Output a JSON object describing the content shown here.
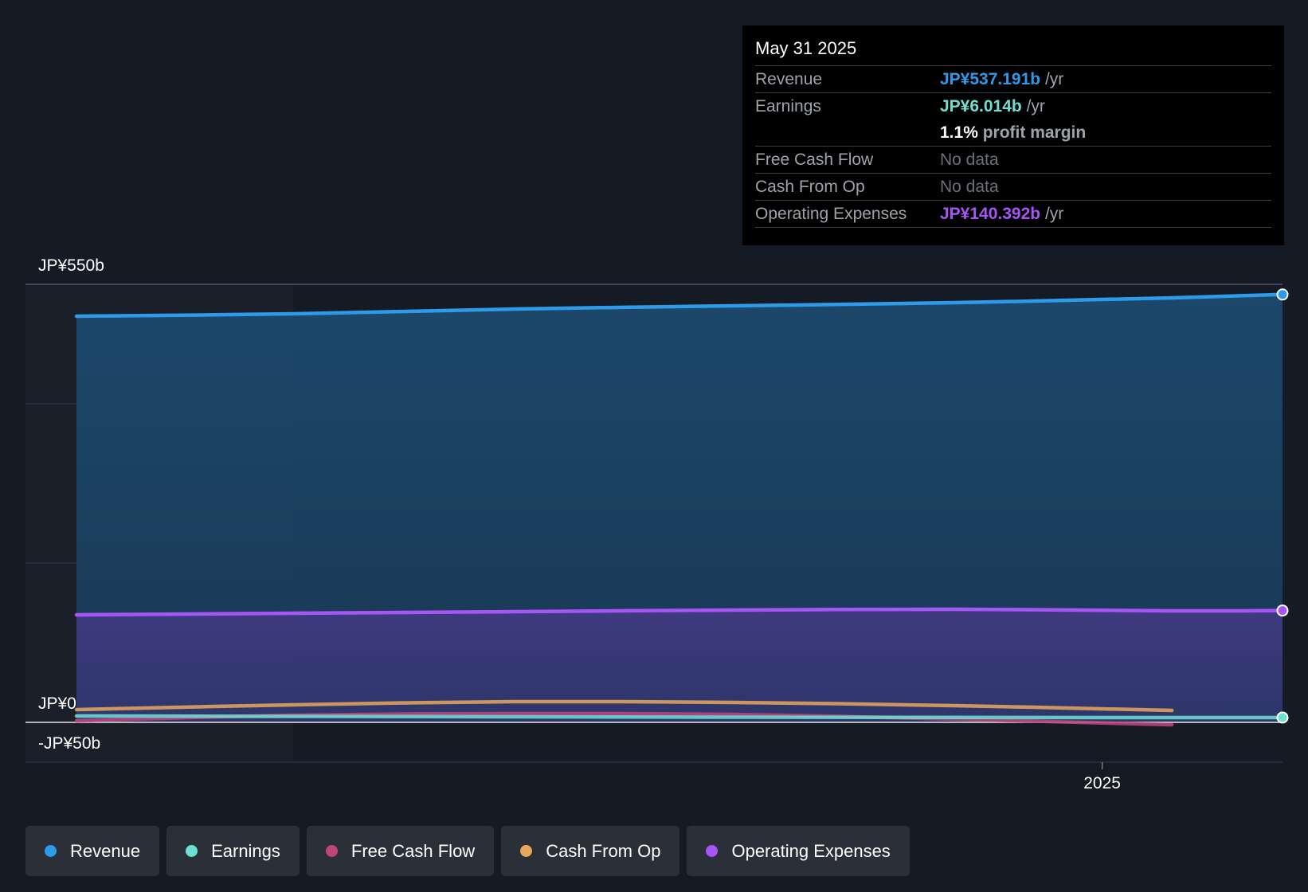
{
  "chart_data": {
    "type": "area",
    "title": "",
    "xlabel": "",
    "ylabel": "",
    "ylim": [
      -50,
      550
    ],
    "y_tick_labels": [
      "JP¥550b",
      "JP¥0",
      "-JP¥50b"
    ],
    "y_ticks": [
      550,
      0,
      -50
    ],
    "x_tick_labels": [
      "2025"
    ],
    "x_ticks": [
      "2025-01-01"
    ],
    "x_range": [
      "2022-09-01",
      "2025-05-31"
    ],
    "shaded_until": "2023-02-28",
    "grid": true,
    "series": [
      {
        "name": "Revenue",
        "color": "#2d9bea",
        "fill": true,
        "x": [
          "2022-09-01",
          "2023-02-28",
          "2023-08-31",
          "2024-02-29",
          "2024-08-31",
          "2025-02-28",
          "2025-05-31"
        ],
        "values": [
          510,
          513,
          519,
          523,
          527,
          533,
          537.191
        ]
      },
      {
        "name": "Operating Expenses",
        "color": "#a855f7",
        "fill": true,
        "x": [
          "2022-09-01",
          "2023-02-28",
          "2023-08-31",
          "2024-02-29",
          "2024-08-31",
          "2025-02-28",
          "2025-05-31"
        ],
        "values": [
          135,
          137,
          139,
          141,
          142,
          140,
          140.392
        ]
      },
      {
        "name": "Earnings",
        "color": "#6de0d2",
        "fill": false,
        "x": [
          "2022-09-01",
          "2023-02-28",
          "2023-08-31",
          "2024-02-29",
          "2024-08-31",
          "2025-02-28",
          "2025-05-31"
        ],
        "values": [
          8,
          7.5,
          7,
          6.5,
          6.2,
          6,
          6.014
        ]
      },
      {
        "name": "Free Cash Flow",
        "color": "#c2447f",
        "fill": false,
        "x": [
          "2022-09-01",
          "2023-02-28",
          "2023-08-31",
          "2024-02-29",
          "2024-08-31",
          "2025-02-28"
        ],
        "values": [
          2,
          9,
          11,
          10,
          4,
          -3
        ]
      },
      {
        "name": "Cash From Op",
        "color": "#e8a85c",
        "fill": false,
        "x": [
          "2022-09-01",
          "2023-02-28",
          "2023-08-31",
          "2024-02-29",
          "2024-08-31",
          "2025-02-28"
        ],
        "values": [
          16,
          22,
          26,
          25,
          21,
          15
        ]
      }
    ]
  },
  "tooltip": {
    "date": "May 31 2025",
    "revenue_label": "Revenue",
    "revenue_value": "JP¥537.191b",
    "revenue_unit": "/yr",
    "earnings_label": "Earnings",
    "earnings_value": "JP¥6.014b",
    "earnings_unit": "/yr",
    "margin_value": "1.1%",
    "margin_text": "profit margin",
    "fcf_label": "Free Cash Flow",
    "fcf_value": "No data",
    "cfo_label": "Cash From Op",
    "cfo_value": "No data",
    "opex_label": "Operating Expenses",
    "opex_value": "JP¥140.392b",
    "opex_unit": "/yr"
  },
  "legend": [
    {
      "label": "Revenue",
      "color": "#2d9bea"
    },
    {
      "label": "Earnings",
      "color": "#6de0d2"
    },
    {
      "label": "Free Cash Flow",
      "color": "#c2447f"
    },
    {
      "label": "Cash From Op",
      "color": "#e8a85c"
    },
    {
      "label": "Operating Expenses",
      "color": "#a855f7"
    }
  ]
}
